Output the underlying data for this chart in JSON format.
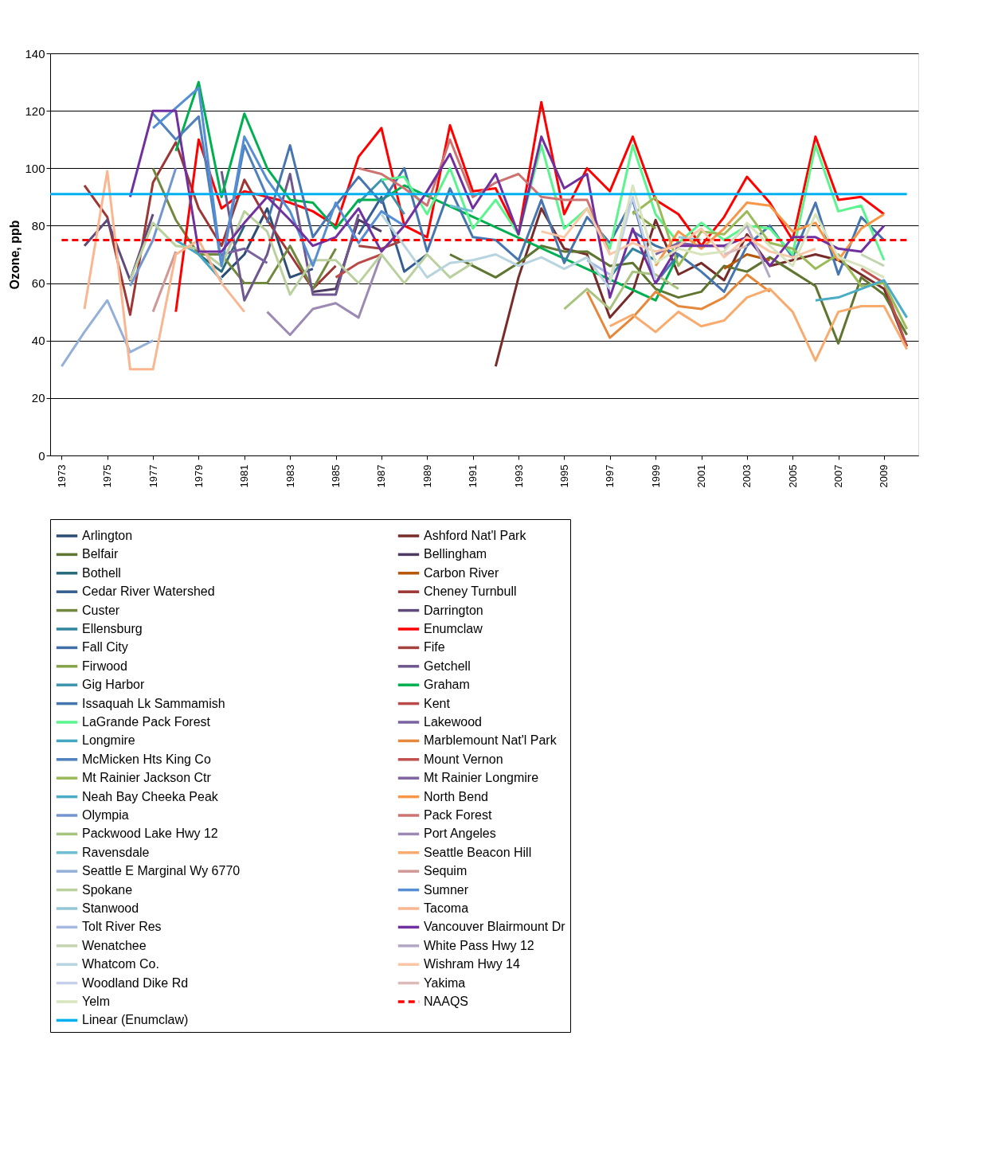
{
  "chart_data": {
    "type": "line",
    "ylabel": "Ozone, ppb",
    "xlim": [
      1972.5,
      2010.5
    ],
    "xticks": [
      1973,
      1975,
      1977,
      1979,
      1981,
      1983,
      1985,
      1987,
      1989,
      1991,
      1993,
      1995,
      1997,
      1999,
      2001,
      2003,
      2005,
      2007,
      2009
    ],
    "ylim": [
      0,
      140
    ],
    "yticks": [
      0,
      20,
      40,
      60,
      80,
      100,
      120,
      140
    ],
    "grid": "y",
    "legend": "bottom",
    "line_style": "solid",
    "series": [
      {
        "name": "Arlington",
        "color": "#2c4d75",
        "x": [
          1980,
          1981,
          1982,
          1983,
          1984
        ],
        "values": [
          62,
          70,
          86,
          62,
          65
        ]
      },
      {
        "name": "Ashford Nat'l Park",
        "color": "#772c2a",
        "x": [
          1992,
          1993,
          1994,
          1995,
          1996,
          1997,
          1998,
          1999,
          2000,
          2001,
          2002,
          2003,
          2004,
          2005,
          2006,
          2007,
          2008,
          2009,
          2010
        ],
        "values": [
          31,
          62,
          86,
          72,
          70,
          48,
          57,
          82,
          63,
          67,
          61,
          77,
          66,
          68,
          70,
          68,
          63,
          58,
          38
        ]
      },
      {
        "name": "Belfair",
        "color": "#5f7530",
        "x": [
          1990,
          1991,
          1992,
          1993,
          1994,
          1995,
          1996,
          1997,
          1998,
          1999,
          2000,
          2001,
          2002,
          2003,
          2004,
          2005,
          2006,
          2007,
          2008,
          2009,
          2010
        ],
        "values": [
          70,
          66,
          62,
          67,
          73,
          71,
          71,
          66,
          67,
          58,
          55,
          57,
          66,
          64,
          69,
          64,
          59,
          39,
          62,
          56,
          42
        ]
      },
      {
        "name": "Bellingham",
        "color": "#4d3b62",
        "x": [
          1984,
          1985,
          1986,
          1987
        ],
        "values": [
          57,
          58,
          82,
          78
        ]
      },
      {
        "name": "Bothell",
        "color": "#276a7c",
        "x": [
          1979,
          1980,
          1981
        ],
        "values": [
          70,
          64,
          80
        ]
      },
      {
        "name": "Carbon River",
        "color": "#b65708",
        "x": [
          2002,
          2003,
          2004
        ],
        "values": [
          65,
          70,
          68
        ]
      },
      {
        "name": "Cedar River Watershed",
        "color": "#335e8f",
        "x": [
          1986,
          1987,
          1988,
          1989
        ],
        "values": [
          77,
          90,
          64,
          70
        ]
      },
      {
        "name": "Cheney Turnbull",
        "color": "#9c3735",
        "x": [
          1974,
          1975,
          1976,
          1977,
          1978,
          1979,
          1980,
          1981,
          1982,
          1983,
          1984,
          1985
        ],
        "values": [
          94,
          83,
          49,
          95,
          109,
          86,
          73,
          96,
          82,
          70,
          58,
          66
        ]
      },
      {
        "name": "Custer",
        "color": "#71893f",
        "x": [
          1977,
          1978,
          1979,
          1980,
          1981,
          1982,
          1983,
          1984,
          1985
        ],
        "values": [
          100,
          82,
          70,
          70,
          60,
          60,
          73,
          58,
          72
        ]
      },
      {
        "name": "Darrington",
        "color": "#604a7b",
        "x": [
          1974,
          1975,
          1976,
          1977
        ],
        "values": [
          73,
          82,
          61,
          84
        ]
      },
      {
        "name": "Ellensburg",
        "color": "#31859c",
        "x": [
          1997,
          1998,
          1999
        ],
        "values": [
          62,
          72,
          68
        ]
      },
      {
        "name": "Enumclaw",
        "color": "#ff0000",
        "x": [
          1978,
          1979,
          1980,
          1981,
          1982,
          1983,
          1984,
          1985,
          1986,
          1987,
          1988,
          1989,
          1990,
          1991,
          1992,
          1993,
          1994,
          1995,
          1996,
          1997,
          1998,
          1999,
          2000,
          2001,
          2002,
          2003,
          2004,
          2005,
          2006,
          2007,
          2008,
          2009
        ],
        "values": [
          50,
          110,
          86,
          92,
          90,
          88,
          85,
          80,
          104,
          114,
          80,
          76,
          115,
          92,
          93,
          77,
          123,
          84,
          100,
          92,
          111,
          89,
          84,
          73,
          83,
          97,
          88,
          75,
          111,
          89,
          90,
          84
        ]
      },
      {
        "name": "Fall City",
        "color": "#4170a8",
        "x": [
          1998,
          1999,
          2000
        ],
        "values": [
          78,
          73,
          70
        ]
      },
      {
        "name": "Fife",
        "color": "#a5443f",
        "x": [
          1986,
          1987,
          1988
        ],
        "values": [
          73,
          72,
          75
        ]
      },
      {
        "name": "Firwood",
        "color": "#86a349",
        "x": [
          1998,
          1999
        ],
        "values": [
          85,
          79
        ]
      },
      {
        "name": "Getchell",
        "color": "#6e578f",
        "x": [
          1980,
          1981,
          1982,
          1983,
          1984,
          1985,
          1986
        ],
        "values": [
          99,
          54,
          70,
          98,
          56,
          56,
          84
        ]
      },
      {
        "name": "Gig Harbor",
        "color": "#3c94ad",
        "x": [
          1986,
          1987,
          1988
        ],
        "values": [
          88,
          96,
          84
        ]
      },
      {
        "name": "Graham",
        "color": "#00b050",
        "x": [
          1978,
          1979,
          1980,
          1981,
          1982,
          1983,
          1984,
          1985,
          1986,
          1987,
          1988,
          1999,
          2000
        ],
        "values": [
          106,
          130,
          90,
          119,
          100,
          89,
          88,
          79,
          89,
          89,
          94,
          54,
          70
        ]
      },
      {
        "name": "Issaquah Lk Sammamish",
        "color": "#4676b0",
        "x": [
          1982,
          1983,
          1984,
          1985,
          1986,
          1987,
          1988,
          1989,
          1990,
          1991,
          1992,
          1993,
          1994,
          1995,
          1996,
          1997,
          1998,
          1999,
          2000,
          2001,
          2002,
          2003,
          2004,
          2005,
          2006,
          2007,
          2008,
          2009
        ],
        "values": [
          81,
          108,
          76,
          87,
          97,
          88,
          100,
          71,
          93,
          76,
          75,
          68,
          89,
          67,
          83,
          74,
          89,
          60,
          70,
          64,
          57,
          73,
          80,
          69,
          88,
          63,
          83,
          75
        ]
      },
      {
        "name": "Kent",
        "color": "#b94a48",
        "x": [
          1985,
          1986,
          1987
        ],
        "values": [
          62,
          67,
          70
        ]
      },
      {
        "name": "LaGrande Pack Forest",
        "color": "#5af58e",
        "x": [
          1987,
          1988,
          1989,
          1990,
          1991,
          1992,
          1993,
          1994,
          1995,
          1996,
          1997,
          1998,
          1999,
          2000,
          2001,
          2002,
          2003,
          2004,
          2005,
          2006,
          2007,
          2008,
          2009
        ],
        "values": [
          96,
          97,
          84,
          100,
          79,
          89,
          77,
          108,
          79,
          86,
          72,
          108,
          84,
          74,
          81,
          75,
          80,
          79,
          70,
          108,
          85,
          87,
          68
        ]
      },
      {
        "name": "Lakewood",
        "color": "#7a62a0",
        "x": [
          1980,
          1981,
          1982
        ],
        "values": [
          70,
          72,
          67
        ]
      },
      {
        "name": "Longmire",
        "color": "#44a6c0",
        "x": [
          1978,
          1979,
          1980
        ],
        "values": [
          75,
          70,
          61
        ]
      },
      {
        "name": "Marblemount Nat'l Park",
        "color": "#e6883b",
        "x": [
          1996,
          1997,
          1998,
          1999,
          2000,
          2001,
          2002,
          2003,
          2004
        ],
        "values": [
          57,
          41,
          48,
          57,
          52,
          51,
          55,
          63,
          57
        ]
      },
      {
        "name": "McMicken Hts King Co",
        "color": "#4f81bd",
        "x": [
          1977,
          1978,
          1979,
          1980,
          1981,
          1982
        ],
        "values": [
          119,
          110,
          118,
          66,
          108,
          90
        ]
      },
      {
        "name": "Mount Vernon",
        "color": "#c0504d",
        "x": [
          2008,
          2009,
          2010
        ],
        "values": [
          65,
          60,
          38
        ]
      },
      {
        "name": "Mt Rainier Jackson Ctr",
        "color": "#9bbb59",
        "x": [
          1998,
          1999,
          2000,
          2001,
          2002,
          2003,
          2004,
          2005,
          2006,
          2007,
          2008,
          2009,
          2010
        ],
        "values": [
          84,
          90,
          66,
          78,
          77,
          85,
          74,
          72,
          65,
          70,
          59,
          60,
          44
        ]
      },
      {
        "name": "Mt Rainier Longmire",
        "color": "#8064a2",
        "x": [
          1999,
          2000,
          2001,
          2002
        ],
        "values": [
          70,
          74,
          73,
          73
        ]
      },
      {
        "name": "Neah Bay Cheeka  Peak",
        "color": "#4bacc6",
        "x": [
          2006,
          2007,
          2008,
          2009,
          2010
        ],
        "values": [
          54,
          55,
          58,
          61,
          48
        ]
      },
      {
        "name": "North Bend",
        "color": "#f79646",
        "x": [
          1999,
          2000,
          2001,
          2002,
          2003,
          2004,
          2005,
          2006,
          2007,
          2008,
          2009
        ],
        "values": [
          66,
          78,
          72,
          79,
          88,
          87,
          78,
          81,
          68,
          79,
          84
        ]
      },
      {
        "name": "Olympia",
        "color": "#7396d1",
        "x": [
          1976,
          1977,
          1978
        ],
        "values": [
          59,
          75,
          100
        ]
      },
      {
        "name": "Pack Forest",
        "color": "#cd7371",
        "x": [
          1986,
          1987,
          1988,
          1989,
          1990,
          1991,
          1992,
          1993,
          1994,
          1995,
          1996,
          1997
        ],
        "values": [
          100,
          98,
          93,
          87,
          110,
          90,
          95,
          98,
          90,
          89,
          89,
          70
        ]
      },
      {
        "name": "Packwood Lake Hwy 12",
        "color": "#a9c47f",
        "x": [
          1995,
          1996,
          1997,
          1998,
          1999,
          2000
        ],
        "values": [
          51,
          58,
          51,
          64,
          63,
          58
        ]
      },
      {
        "name": "Port Angeles",
        "color": "#9c8ab4",
        "x": [
          1982,
          1983,
          1984,
          1985,
          1986,
          1987
        ],
        "values": [
          50,
          42,
          51,
          53,
          48,
          70
        ]
      },
      {
        "name": "Ravensdale",
        "color": "#6fbdd1",
        "x": [
          1990,
          1991
        ],
        "values": [
          87,
          85
        ]
      },
      {
        "name": "Seattle Beacon Hill",
        "color": "#f9ab6d",
        "x": [
          1997,
          1998,
          1999,
          2000,
          2001,
          2002,
          2003,
          2004,
          2005,
          2006,
          2007,
          2008,
          2009,
          2010
        ],
        "values": [
          45,
          49,
          43,
          50,
          45,
          47,
          55,
          58,
          50,
          33,
          50,
          52,
          52,
          37
        ]
      },
      {
        "name": "Seattle E Marginal Wy 6770",
        "color": "#95b0d8",
        "x": [
          1973,
          1974,
          1975,
          1976,
          1977
        ],
        "values": [
          31,
          43,
          54,
          36,
          40
        ]
      },
      {
        "name": "Sequim",
        "color": "#d09998",
        "x": [
          1977,
          1978
        ],
        "values": [
          50,
          71
        ]
      },
      {
        "name": "Spokane",
        "color": "#bad09f",
        "x": [
          1976,
          1977,
          1978,
          1979,
          1980,
          1981,
          1982,
          1983,
          1984,
          1985,
          1986,
          1987,
          1988,
          1989,
          1990,
          1991
        ],
        "values": [
          61,
          81,
          73,
          72,
          66,
          85,
          78,
          56,
          68,
          68,
          60,
          70,
          60,
          70,
          62,
          67
        ]
      },
      {
        "name": "Sumner",
        "color": "#558ed5",
        "x": [
          1977,
          1978,
          1979,
          1980,
          1981,
          1982,
          1983,
          1984,
          1985,
          1986,
          1987,
          1988
        ],
        "values": [
          114,
          121,
          128,
          66,
          111,
          96,
          85,
          66,
          88,
          74,
          85,
          80
        ]
      },
      {
        "name": "Stanwood",
        "color": "#93c6d6",
        "x": [
          2000,
          2001
        ],
        "values": [
          76,
          75
        ]
      },
      {
        "name": "Tacoma",
        "color": "#f9b690",
        "x": [
          1974,
          1975,
          1976,
          1977,
          1978,
          1979,
          1980,
          1981
        ],
        "values": [
          51,
          99,
          30,
          30,
          70,
          75,
          60,
          50
        ]
      },
      {
        "name": "Tolt River Res",
        "color": "#a7b9e0",
        "x": [
          1996,
          1997
        ],
        "values": [
          68,
          63
        ]
      },
      {
        "name": "Vancouver Blairmount Dr",
        "color": "#7030a0",
        "x": [
          1976,
          1977,
          1978,
          1979,
          1980,
          1981,
          1982,
          1983,
          1984,
          1985,
          1986,
          1987,
          1988,
          1989,
          1990,
          1991,
          1992,
          1993,
          1994,
          1995,
          1996,
          1997,
          1998,
          1999,
          2000,
          2001,
          2002,
          2003,
          2004,
          2005,
          2006,
          2007,
          2008,
          2009
        ],
        "values": [
          90,
          120,
          120,
          71,
          71,
          81,
          90,
          82,
          73,
          76,
          86,
          71,
          80,
          92,
          105,
          86,
          98,
          77,
          111,
          93,
          98,
          55,
          79,
          60,
          73,
          73,
          73,
          76,
          66,
          76,
          76,
          72,
          71,
          80
        ]
      },
      {
        "name": "Wenatchee",
        "color": "#c4d3b0",
        "x": [
          2008,
          2009
        ],
        "values": [
          70,
          66
        ]
      },
      {
        "name": "White Pass Hwy  12",
        "color": "#b3a9c6",
        "x": [
          2002,
          2003,
          2004
        ],
        "values": [
          72,
          80,
          62
        ]
      },
      {
        "name": "Whatcom Co.",
        "color": "#b7d4df",
        "x": [
          1987,
          1988,
          1989,
          1990,
          1991,
          1992,
          1993,
          1994,
          1995,
          1996,
          1997
        ],
        "values": [
          84,
          73,
          62,
          67,
          68,
          70,
          66,
          69,
          65,
          69,
          58
        ]
      },
      {
        "name": "Wishram Hwy  14",
        "color": "#fac7a6",
        "x": [
          1994,
          1995,
          1996,
          1997,
          1998,
          1999,
          2000,
          2001,
          2002,
          2003,
          2004,
          2005,
          2006
        ],
        "values": [
          78,
          76,
          86,
          70,
          74,
          71,
          73,
          79,
          69,
          76,
          71,
          69,
          72
        ]
      },
      {
        "name": "Woodland Dike Rd",
        "color": "#c6d0e8",
        "x": [
          1997,
          1998,
          1999
        ],
        "values": [
          60,
          90,
          61
        ]
      },
      {
        "name": "Yakima",
        "color": "#dcbab9",
        "x": [
          2002,
          2003
        ],
        "values": [
          70,
          73
        ]
      },
      {
        "name": "Yelm",
        "color": "#d7e4bd",
        "x": [
          1997,
          1998,
          1999,
          2000,
          2001,
          2002,
          2003,
          2004,
          2005,
          2006,
          2007,
          2008,
          2009
        ],
        "values": [
          61,
          94,
          67,
          72,
          70,
          71,
          81,
          73,
          66,
          84,
          69,
          66,
          62
        ]
      },
      {
        "name": "NAAQS",
        "color": "#ff0000",
        "line_style": "dashed",
        "x": [
          1973,
          2010
        ],
        "values": [
          75,
          75
        ]
      },
      {
        "name": "Linear (Enumclaw)",
        "color": "#00b0f0",
        "x": [
          1972.5,
          2010
        ],
        "values": [
          91,
          91
        ]
      }
    ]
  }
}
